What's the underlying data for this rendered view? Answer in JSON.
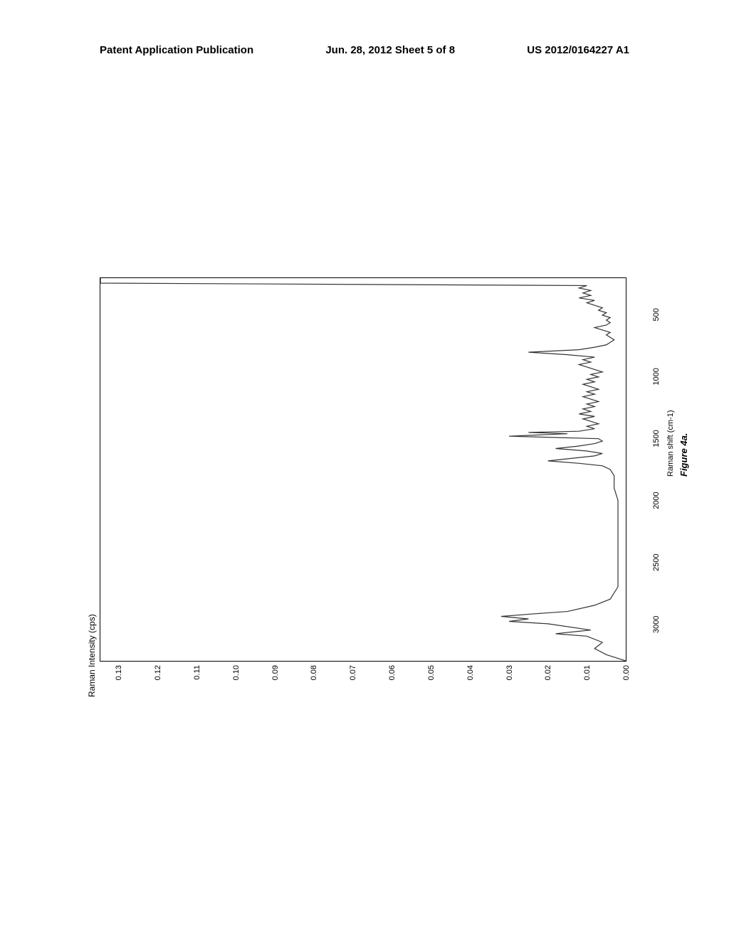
{
  "header": {
    "left": "Patent Application Publication",
    "center": "Jun. 28, 2012  Sheet 5 of 8",
    "right": "US 2012/0164227 A1"
  },
  "chart": {
    "type": "line",
    "y_title": "Raman Intensity (cps)",
    "x_label": "Raman shift (cm-1)",
    "figure_caption": "Figure 4a.",
    "y_ticks": [
      "0.00",
      "0.01",
      "0.02",
      "0.03",
      "0.04",
      "0.05",
      "0.06",
      "0.07",
      "0.08",
      "0.09",
      "0.10",
      "0.11",
      "0.12",
      "0.13"
    ],
    "x_ticks": [
      "3000",
      "2500",
      "2000",
      "1500",
      "1000",
      "500"
    ],
    "x_min": 3300,
    "x_max": 200,
    "y_min": 0,
    "y_max": 0.135,
    "line_color": "#333333",
    "line_width": 1.2,
    "background_color": "#ffffff",
    "border_color": "#000000",
    "font_size_ticks": 11,
    "font_size_labels": 12,
    "data_points": [
      [
        3300,
        0.0
      ],
      [
        3250,
        0.005
      ],
      [
        3200,
        0.008
      ],
      [
        3150,
        0.006
      ],
      [
        3100,
        0.01
      ],
      [
        3080,
        0.018
      ],
      [
        3060,
        0.012
      ],
      [
        3050,
        0.009
      ],
      [
        3000,
        0.02
      ],
      [
        2980,
        0.03
      ],
      [
        2960,
        0.025
      ],
      [
        2940,
        0.032
      ],
      [
        2920,
        0.024
      ],
      [
        2900,
        0.015
      ],
      [
        2850,
        0.008
      ],
      [
        2800,
        0.004
      ],
      [
        2700,
        0.002
      ],
      [
        2600,
        0.002
      ],
      [
        2500,
        0.002
      ],
      [
        2400,
        0.002
      ],
      [
        2300,
        0.002
      ],
      [
        2200,
        0.002
      ],
      [
        2100,
        0.002
      ],
      [
        2000,
        0.002
      ],
      [
        1900,
        0.003
      ],
      [
        1800,
        0.003
      ],
      [
        1750,
        0.004
      ],
      [
        1720,
        0.006
      ],
      [
        1700,
        0.012
      ],
      [
        1680,
        0.02
      ],
      [
        1660,
        0.014
      ],
      [
        1640,
        0.008
      ],
      [
        1620,
        0.006
      ],
      [
        1600,
        0.01
      ],
      [
        1580,
        0.018
      ],
      [
        1560,
        0.012
      ],
      [
        1540,
        0.008
      ],
      [
        1520,
        0.006
      ],
      [
        1500,
        0.007
      ],
      [
        1480,
        0.03
      ],
      [
        1460,
        0.015
      ],
      [
        1450,
        0.025
      ],
      [
        1440,
        0.012
      ],
      [
        1420,
        0.008
      ],
      [
        1400,
        0.01
      ],
      [
        1380,
        0.007
      ],
      [
        1360,
        0.009
      ],
      [
        1340,
        0.011
      ],
      [
        1320,
        0.008
      ],
      [
        1300,
        0.012
      ],
      [
        1280,
        0.009
      ],
      [
        1260,
        0.011
      ],
      [
        1240,
        0.008
      ],
      [
        1220,
        0.01
      ],
      [
        1200,
        0.007
      ],
      [
        1180,
        0.009
      ],
      [
        1160,
        0.011
      ],
      [
        1140,
        0.008
      ],
      [
        1120,
        0.01
      ],
      [
        1100,
        0.007
      ],
      [
        1080,
        0.009
      ],
      [
        1060,
        0.011
      ],
      [
        1040,
        0.008
      ],
      [
        1020,
        0.01
      ],
      [
        1000,
        0.007
      ],
      [
        980,
        0.009
      ],
      [
        960,
        0.006
      ],
      [
        940,
        0.008
      ],
      [
        920,
        0.01
      ],
      [
        900,
        0.012
      ],
      [
        880,
        0.009
      ],
      [
        860,
        0.011
      ],
      [
        840,
        0.008
      ],
      [
        820,
        0.015
      ],
      [
        800,
        0.025
      ],
      [
        780,
        0.012
      ],
      [
        760,
        0.008
      ],
      [
        740,
        0.005
      ],
      [
        720,
        0.004
      ],
      [
        700,
        0.003
      ],
      [
        680,
        0.004
      ],
      [
        660,
        0.005
      ],
      [
        640,
        0.004
      ],
      [
        620,
        0.006
      ],
      [
        600,
        0.008
      ],
      [
        580,
        0.005
      ],
      [
        560,
        0.004
      ],
      [
        540,
        0.005
      ],
      [
        520,
        0.004
      ],
      [
        500,
        0.006
      ],
      [
        480,
        0.005
      ],
      [
        460,
        0.007
      ],
      [
        440,
        0.006
      ],
      [
        420,
        0.008
      ],
      [
        400,
        0.01
      ],
      [
        380,
        0.008
      ],
      [
        360,
        0.012
      ],
      [
        340,
        0.009
      ],
      [
        320,
        0.011
      ],
      [
        300,
        0.009
      ],
      [
        280,
        0.012
      ],
      [
        260,
        0.01
      ],
      [
        240,
        0.135
      ],
      [
        220,
        0.135
      ],
      [
        200,
        0.135
      ]
    ]
  }
}
